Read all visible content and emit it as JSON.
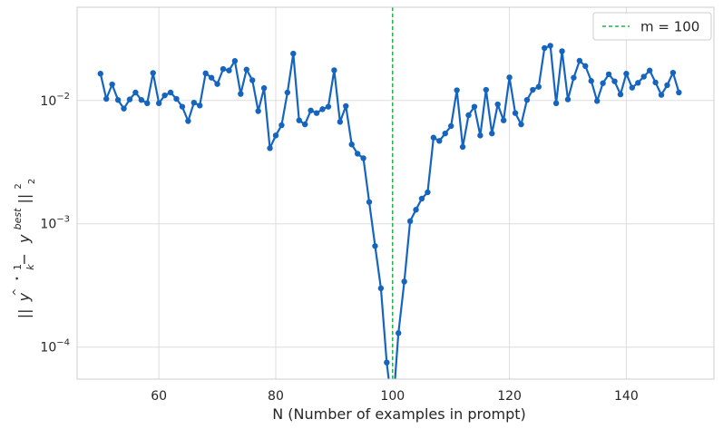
{
  "chart_data": {
    "type": "line",
    "xlabel": "N (Number of examples in prompt)",
    "ylabel_parts": {
      "frac_num": "1",
      "frac_den": "k",
      "norm_left": "||",
      "yhat": "y",
      "hat_mark": "^",
      "star": "⋆",
      "minus": "−",
      "y_best": "y",
      "best_sup": "best",
      "norm_right": "||",
      "sq": "2",
      "sub": "2"
    },
    "x_ticks": [
      60,
      80,
      100,
      120,
      140
    ],
    "x_tick_labels": [
      "60",
      "80",
      "100",
      "120",
      "140"
    ],
    "y_scale": "log",
    "y_ticks": [
      0.0001,
      0.001,
      0.01
    ],
    "y_tick_labels": [
      {
        "base": "10",
        "exp": "−4"
      },
      {
        "base": "10",
        "exp": "−3"
      },
      {
        "base": "10",
        "exp": "−2"
      }
    ],
    "xlim": [
      46,
      155
    ],
    "ylim": [
      5.5e-05,
      0.057
    ],
    "grid": true,
    "vline": {
      "x": 100,
      "label": "m = 100",
      "color": "#22b14c",
      "style": "dashed"
    },
    "legend": {
      "position": "top-right",
      "entries": [
        "m = 100"
      ]
    },
    "series": [
      {
        "color": "#1565c0",
        "x": [
          50,
          51,
          52,
          53,
          54,
          55,
          56,
          57,
          58,
          59,
          60,
          61,
          62,
          63,
          64,
          65,
          66,
          67,
          68,
          69,
          70,
          71,
          72,
          73,
          74,
          75,
          76,
          77,
          78,
          79,
          80,
          81,
          82,
          83,
          84,
          85,
          86,
          87,
          88,
          89,
          90,
          91,
          92,
          93,
          94,
          95,
          96,
          97,
          98,
          99,
          100,
          101,
          102,
          103,
          104,
          105,
          106,
          107,
          108,
          109,
          110,
          111,
          112,
          113,
          114,
          115,
          116,
          117,
          118,
          119,
          120,
          121,
          122,
          123,
          124,
          125,
          126,
          127,
          128,
          129,
          130,
          131,
          132,
          133,
          134,
          135,
          136,
          137,
          138,
          139,
          140,
          141,
          142,
          143,
          144,
          145,
          146,
          147,
          148,
          149
        ],
        "y": [
          0.0165,
          0.0103,
          0.0135,
          0.0101,
          0.0086,
          0.0102,
          0.0116,
          0.0101,
          0.0095,
          0.0167,
          0.0095,
          0.011,
          0.0116,
          0.0103,
          0.0089,
          0.0068,
          0.0096,
          0.0091,
          0.0166,
          0.0153,
          0.0136,
          0.018,
          0.0175,
          0.0209,
          0.0113,
          0.0178,
          0.0146,
          0.0082,
          0.0126,
          0.0041,
          0.0052,
          0.0063,
          0.0116,
          0.024,
          0.0069,
          0.0064,
          0.0083,
          0.0079,
          0.0085,
          0.0089,
          0.0176,
          0.0067,
          0.009,
          0.0044,
          0.0037,
          0.0034,
          0.0015,
          0.00066,
          0.0003,
          7.5e-05,
          3e-05,
          0.00013,
          0.00034,
          0.00105,
          0.0013,
          0.0016,
          0.0018,
          0.005,
          0.0047,
          0.0054,
          0.0062,
          0.0121,
          0.0042,
          0.0076,
          0.0089,
          0.0052,
          0.0122,
          0.0054,
          0.0093,
          0.0069,
          0.0154,
          0.0079,
          0.0064,
          0.0101,
          0.0122,
          0.0129,
          0.0266,
          0.0278,
          0.0095,
          0.0251,
          0.0102,
          0.0153,
          0.021,
          0.019,
          0.0144,
          0.0099,
          0.0138,
          0.0163,
          0.0143,
          0.0112,
          0.0165,
          0.0127,
          0.0139,
          0.0156,
          0.0175,
          0.014,
          0.0111,
          0.0133,
          0.0168,
          0.0116
        ]
      }
    ]
  }
}
